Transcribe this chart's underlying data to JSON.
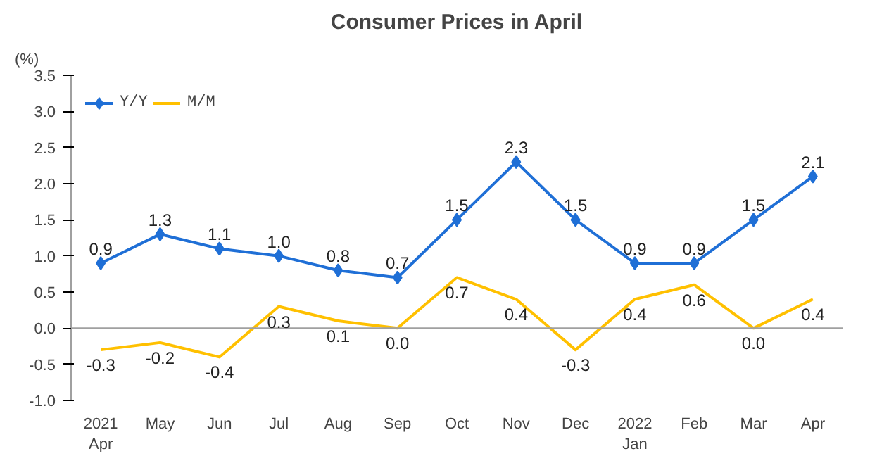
{
  "chart_data": {
    "type": "line",
    "title": "Consumer Prices in April",
    "ylabel": "(%)",
    "categories": [
      "2021\nApr",
      "May",
      "Jun",
      "Jul",
      "Aug",
      "Sep",
      "Oct",
      "Nov",
      "Dec",
      "2022\nJan",
      "Feb",
      "Mar",
      "Apr"
    ],
    "series": [
      {
        "name": "Y/Y",
        "color": "#1f6fd6",
        "marker": "diamond",
        "values": [
          0.9,
          1.3,
          1.1,
          1.0,
          0.8,
          0.7,
          1.5,
          2.3,
          1.5,
          0.9,
          0.9,
          1.5,
          2.1
        ],
        "value_labels": [
          "0.9",
          "1.3",
          "1.1",
          "1.0",
          "0.8",
          "0.7",
          "1.5",
          "2.3",
          "1.5",
          "0.9",
          "0.9",
          "1.5",
          "2.1"
        ]
      },
      {
        "name": "M/M",
        "color": "#ffc000",
        "marker": "none",
        "values": [
          -0.3,
          -0.2,
          -0.4,
          0.3,
          0.1,
          0.0,
          0.7,
          0.4,
          -0.3,
          0.4,
          0.6,
          0.0,
          0.4
        ],
        "value_labels": [
          "-0.3",
          "-0.2",
          "-0.4",
          "0.3",
          "0.1",
          "0.0",
          "0.7",
          "0.4",
          "-0.3",
          "0.4",
          "0.6",
          "0.0",
          "0.4"
        ]
      }
    ],
    "ylim": [
      -1.0,
      3.5
    ],
    "yticks": [
      {
        "value": -1.0,
        "label": "-1.0"
      },
      {
        "value": -0.5,
        "label": "-0.5"
      },
      {
        "value": 0,
        "label": "0.0"
      },
      {
        "value": 0.5,
        "label": "0.5"
      },
      {
        "value": 1.0,
        "label": "1.0"
      },
      {
        "value": 1.5,
        "label": "1.5"
      },
      {
        "value": 2.0,
        "label": "2.0"
      },
      {
        "value": 2.5,
        "label": "2.5"
      },
      {
        "value": 3.0,
        "label": "3.0"
      },
      {
        "value": 3.5,
        "label": "3.5"
      }
    ],
    "ref_lines": [
      {
        "axis": "y",
        "value": 0,
        "color": "#a0a0a0"
      }
    ],
    "grid": false,
    "legend": "top left",
    "line_style": "solid"
  }
}
